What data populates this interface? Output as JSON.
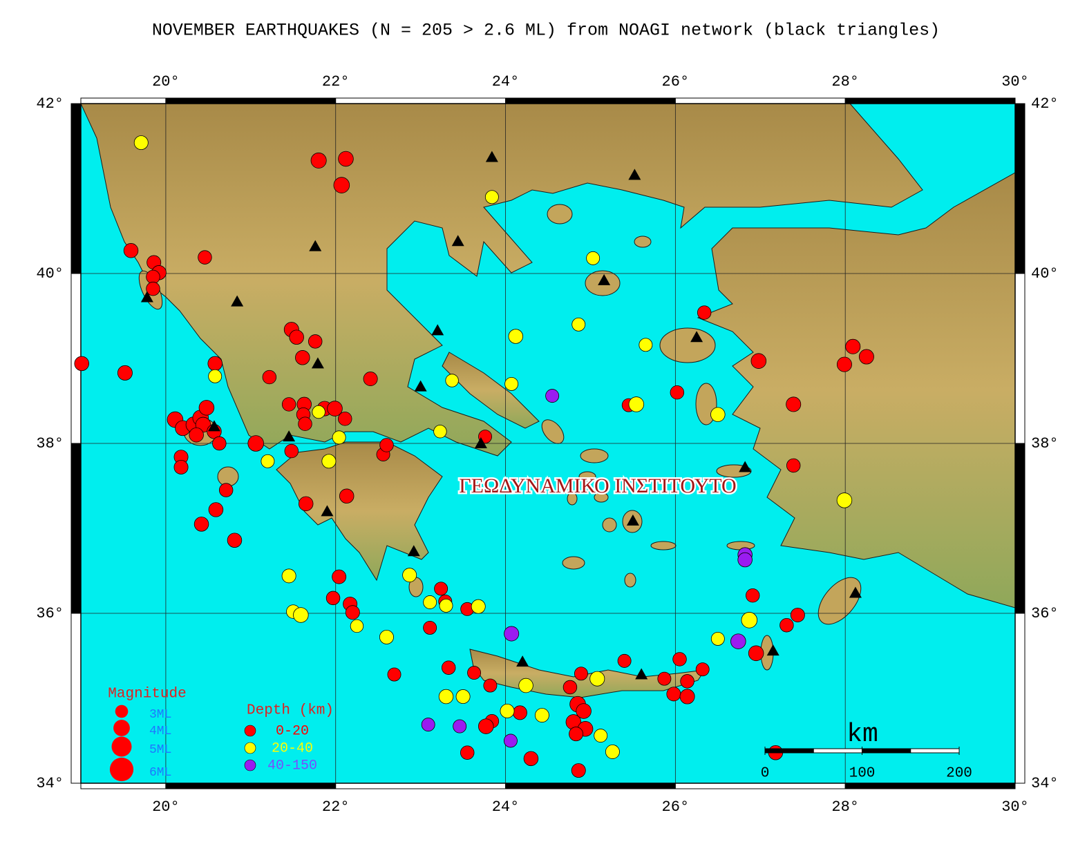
{
  "chart_data": {
    "type": "map",
    "title": "NOVEMBER EARTHQUAKES (N = 205 > 2.6 ML) from NOAGI network (black triangles)",
    "xlim": [
      19,
      30
    ],
    "ylim": [
      34,
      42
    ],
    "xticks": [
      {
        "value": 20,
        "label": "20°"
      },
      {
        "value": 22,
        "label": "22°"
      },
      {
        "value": 24,
        "label": "24°"
      },
      {
        "value": 26,
        "label": "26°"
      },
      {
        "value": 28,
        "label": "28°"
      },
      {
        "value": 30,
        "label": "30°"
      }
    ],
    "yticks": [
      {
        "value": 34,
        "label": "34°"
      },
      {
        "value": 36,
        "label": "36°"
      },
      {
        "value": 38,
        "label": "38°"
      },
      {
        "value": 40,
        "label": "40°"
      },
      {
        "value": 42,
        "label": "42°"
      }
    ],
    "grid": true,
    "watermark": "ΓΕΩΔΥΝΑΜΙΚΟ ΙΝΣΤΙΤΟΥΤΟ",
    "magnitude_legend": {
      "title": "Magnitude",
      "items": [
        {
          "value": 3,
          "label": "3ML"
        },
        {
          "value": 4,
          "label": "4ML"
        },
        {
          "value": 5,
          "label": "5ML"
        },
        {
          "value": 6,
          "label": "6ML"
        }
      ]
    },
    "depth_legend_title": "Depth (km)",
    "series": [
      {
        "name": "0-20",
        "color": "#ff0000",
        "points": [
          [
            21.8,
            41.33,
            3.7
          ],
          [
            22.12,
            41.35,
            3.6
          ],
          [
            22.07,
            41.04,
            3.8
          ],
          [
            19.59,
            40.27,
            3.4
          ],
          [
            19.86,
            40.13,
            3.3
          ],
          [
            19.92,
            40.01,
            3.4
          ],
          [
            19.85,
            39.96,
            3.2
          ],
          [
            19.85,
            39.82,
            3.2
          ],
          [
            20.46,
            40.19,
            3.2
          ],
          [
            19.01,
            38.94,
            3.4
          ],
          [
            19.52,
            38.83,
            3.5
          ],
          [
            20.58,
            38.94,
            3.4
          ],
          [
            20.11,
            38.28,
            3.8
          ],
          [
            20.2,
            38.18,
            3.6
          ],
          [
            20.33,
            38.22,
            3.8
          ],
          [
            20.41,
            38.3,
            3.8
          ],
          [
            20.48,
            38.42,
            3.6
          ],
          [
            20.44,
            38.22,
            3.6
          ],
          [
            20.36,
            38.1,
            3.4
          ],
          [
            20.57,
            38.14,
            3.4
          ],
          [
            20.18,
            37.84,
            3.3
          ],
          [
            20.18,
            37.72,
            3.3
          ],
          [
            20.63,
            38.0,
            3.2
          ],
          [
            20.71,
            37.45,
            3.2
          ],
          [
            20.59,
            37.22,
            3.4
          ],
          [
            20.42,
            37.05,
            3.4
          ],
          [
            20.81,
            36.86,
            3.4
          ],
          [
            21.06,
            38.0,
            3.8
          ],
          [
            21.22,
            38.78,
            3.2
          ],
          [
            21.48,
            39.34,
            3.5
          ],
          [
            21.54,
            39.25,
            3.4
          ],
          [
            21.61,
            39.01,
            3.4
          ],
          [
            21.76,
            39.2,
            3.2
          ],
          [
            21.45,
            38.46,
            3.2
          ],
          [
            21.63,
            38.46,
            3.4
          ],
          [
            21.62,
            38.34,
            3.2
          ],
          [
            21.64,
            38.23,
            3.2
          ],
          [
            21.87,
            38.41,
            3.5
          ],
          [
            21.99,
            38.41,
            3.6
          ],
          [
            22.11,
            38.29,
            3.2
          ],
          [
            21.48,
            37.91,
            3.2
          ],
          [
            21.65,
            37.29,
            3.4
          ],
          [
            22.13,
            37.38,
            3.4
          ],
          [
            22.04,
            36.43,
            3.3
          ],
          [
            21.97,
            36.18,
            3.2
          ],
          [
            22.17,
            36.11,
            3.3
          ],
          [
            22.2,
            36.01,
            3.3
          ],
          [
            22.41,
            38.76,
            3.3
          ],
          [
            22.56,
            37.87,
            3.1
          ],
          [
            22.6,
            37.98,
            3.2
          ],
          [
            23.76,
            38.08,
            3.1
          ],
          [
            23.24,
            36.29,
            3.1
          ],
          [
            23.29,
            36.14,
            3.1
          ],
          [
            23.11,
            35.83,
            3.1
          ],
          [
            23.55,
            36.05,
            3.1
          ],
          [
            22.69,
            35.28,
            3.1
          ],
          [
            23.33,
            35.36,
            3.2
          ],
          [
            23.63,
            35.3,
            3.1
          ],
          [
            23.82,
            35.15,
            3.1
          ],
          [
            23.84,
            34.73,
            3.2
          ],
          [
            23.77,
            34.67,
            3.6
          ],
          [
            23.55,
            34.36,
            3.2
          ],
          [
            24.17,
            34.83,
            3.3
          ],
          [
            24.3,
            34.29,
            3.4
          ],
          [
            24.76,
            35.13,
            3.2
          ],
          [
            24.89,
            35.29,
            3.1
          ],
          [
            24.85,
            34.93,
            3.8
          ],
          [
            24.92,
            34.85,
            3.6
          ],
          [
            24.8,
            34.72,
            3.6
          ],
          [
            24.94,
            34.64,
            3.6
          ],
          [
            24.83,
            34.58,
            3.3
          ],
          [
            24.86,
            34.15,
            3.3
          ],
          [
            25.4,
            35.44,
            3.1
          ],
          [
            25.87,
            35.23,
            3.1
          ],
          [
            26.05,
            35.46,
            3.2
          ],
          [
            26.14,
            35.2,
            3.2
          ],
          [
            25.98,
            35.05,
            3.3
          ],
          [
            26.14,
            35.02,
            3.5
          ],
          [
            26.32,
            35.34,
            3.1
          ],
          [
            25.45,
            38.45,
            3.1
          ],
          [
            26.02,
            38.6,
            3.2
          ],
          [
            26.34,
            39.54,
            3.2
          ],
          [
            26.98,
            38.97,
            3.6
          ],
          [
            27.39,
            38.46,
            3.5
          ],
          [
            27.99,
            38.93,
            3.5
          ],
          [
            28.09,
            39.14,
            3.5
          ],
          [
            28.25,
            39.02,
            3.5
          ],
          [
            27.39,
            37.74,
            3.2
          ],
          [
            26.91,
            36.21,
            3.2
          ],
          [
            26.95,
            35.53,
            3.6
          ],
          [
            27.31,
            35.86,
            3.2
          ],
          [
            27.44,
            35.98,
            3.3
          ],
          [
            27.18,
            34.36,
            3.4
          ]
        ]
      },
      {
        "name": "20-40",
        "color": "#ffff00",
        "points": [
          [
            19.71,
            41.54,
            3.3
          ],
          [
            23.84,
            40.9,
            3.1
          ],
          [
            25.03,
            40.18,
            3.1
          ],
          [
            24.86,
            39.4,
            3.1
          ],
          [
            24.12,
            39.26,
            3.4
          ],
          [
            25.65,
            39.16,
            3.1
          ],
          [
            24.07,
            38.7,
            3.1
          ],
          [
            20.58,
            38.79,
            3.1
          ],
          [
            23.37,
            38.74,
            3.0
          ],
          [
            21.8,
            38.37,
            3.0
          ],
          [
            22.04,
            38.07,
            3.1
          ],
          [
            23.23,
            38.14,
            3.0
          ],
          [
            21.2,
            37.79,
            3.1
          ],
          [
            21.92,
            37.79,
            3.3
          ],
          [
            25.54,
            38.46,
            3.6
          ],
          [
            26.5,
            38.34,
            3.4
          ],
          [
            27.99,
            37.33,
            3.6
          ],
          [
            21.45,
            36.44,
            3.3
          ],
          [
            21.5,
            36.02,
            3.2
          ],
          [
            21.59,
            35.98,
            3.6
          ],
          [
            22.25,
            35.85,
            3.0
          ],
          [
            22.6,
            35.72,
            3.3
          ],
          [
            22.87,
            36.45,
            3.3
          ],
          [
            23.11,
            36.13,
            3.1
          ],
          [
            23.3,
            36.09,
            3.1
          ],
          [
            23.68,
            36.08,
            3.3
          ],
          [
            26.87,
            35.92,
            3.8
          ],
          [
            26.5,
            35.7,
            3.1
          ],
          [
            24.24,
            35.15,
            3.4
          ],
          [
            25.08,
            35.23,
            3.5
          ],
          [
            23.3,
            35.02,
            3.4
          ],
          [
            23.5,
            35.02,
            3.3
          ],
          [
            24.02,
            34.85,
            3.3
          ],
          [
            24.43,
            34.8,
            3.3
          ],
          [
            25.12,
            34.56,
            3.1
          ],
          [
            25.26,
            34.37,
            3.3
          ]
        ]
      },
      {
        "name": "40-150",
        "color": "#9a1cf0",
        "points": [
          [
            24.55,
            38.56,
            3.1
          ],
          [
            26.82,
            36.69,
            3.4
          ],
          [
            26.82,
            36.63,
            3.4
          ],
          [
            26.74,
            35.67,
            3.6
          ],
          [
            24.07,
            35.76,
            3.5
          ],
          [
            23.09,
            34.69,
            3.1
          ],
          [
            23.46,
            34.67,
            3.1
          ],
          [
            24.06,
            34.5,
            3.1
          ]
        ]
      }
    ],
    "stations": {
      "color": "#000000",
      "points": [
        [
          23.84,
          41.37
        ],
        [
          25.52,
          41.16
        ],
        [
          21.76,
          40.32
        ],
        [
          23.44,
          40.38
        ],
        [
          20.84,
          39.67
        ],
        [
          19.78,
          39.72
        ],
        [
          25.16,
          39.92
        ],
        [
          23.2,
          39.33
        ],
        [
          21.79,
          38.94
        ],
        [
          23.0,
          38.67
        ],
        [
          26.25,
          39.25
        ],
        [
          20.57,
          38.2
        ],
        [
          21.45,
          38.08
        ],
        [
          23.71,
          38.0
        ],
        [
          26.82,
          37.72
        ],
        [
          21.9,
          37.2
        ],
        [
          25.5,
          37.09
        ],
        [
          22.92,
          36.73
        ],
        [
          28.12,
          36.24
        ],
        [
          24.2,
          35.43
        ],
        [
          25.6,
          35.28
        ],
        [
          27.15,
          35.56
        ]
      ]
    },
    "scale_bar": {
      "label": "km",
      "ticks": [
        0,
        100,
        200
      ]
    }
  }
}
